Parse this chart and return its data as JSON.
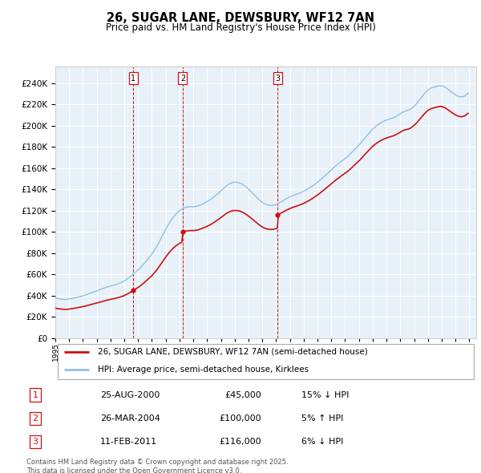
{
  "title": "26, SUGAR LANE, DEWSBURY, WF12 7AN",
  "subtitle": "Price paid vs. HM Land Registry's House Price Index (HPI)",
  "plot_bg_color": "#e8f0f8",
  "ylabel_values": [
    0,
    20000,
    40000,
    60000,
    80000,
    100000,
    120000,
    140000,
    160000,
    180000,
    200000,
    220000,
    240000
  ],
  "ylim": [
    0,
    256000
  ],
  "xlim_start": 1995.0,
  "xlim_end": 2025.5,
  "hpi_color": "#92c0e0",
  "price_color": "#cc1111",
  "legend_line1": "26, SUGAR LANE, DEWSBURY, WF12 7AN (semi-detached house)",
  "legend_line2": "HPI: Average price, semi-detached house, Kirklees",
  "transactions": [
    {
      "num": 1,
      "date": "25-AUG-2000",
      "year": 2000.65,
      "price": 45000,
      "pct": "15%",
      "dir": "↓",
      "hpi_index": 65200
    },
    {
      "num": 2,
      "date": "26-MAR-2004",
      "year": 2004.23,
      "price": 100000,
      "pct": "5%",
      "dir": "↑",
      "hpi_index": 126700
    },
    {
      "num": 3,
      "date": "11-FEB-2011",
      "year": 2011.12,
      "price": 116000,
      "pct": "6%",
      "dir": "↓",
      "hpi_index": 128600
    }
  ],
  "footer": "Contains HM Land Registry data © Crown copyright and database right 2025.\nThis data is licensed under the Open Government Licence v3.0.",
  "hpi_monthly": [
    38000,
    37700,
    37500,
    37200,
    37000,
    36800,
    36700,
    36600,
    36500,
    36400,
    36500,
    36700,
    36900,
    37100,
    37300,
    37500,
    37700,
    37900,
    38200,
    38500,
    38800,
    39100,
    39300,
    39600,
    39900,
    40200,
    40600,
    41000,
    41400,
    41800,
    42200,
    42600,
    43000,
    43400,
    43800,
    44200,
    44600,
    45000,
    45400,
    45800,
    46200,
    46600,
    47000,
    47400,
    47800,
    48200,
    48500,
    48800,
    49100,
    49400,
    49700,
    50000,
    50300,
    50700,
    51100,
    51500,
    51900,
    52400,
    52900,
    53400,
    53900,
    54600,
    55400,
    56200,
    57000,
    57800,
    58700,
    59600,
    60500,
    61400,
    62400,
    63400,
    64300,
    65200,
    66300,
    67500,
    68700,
    69900,
    71200,
    72500,
    73800,
    75100,
    76400,
    77800,
    79200,
    80800,
    82500,
    84200,
    86000,
    88000,
    90000,
    92100,
    94200,
    96300,
    98400,
    100500,
    102600,
    104600,
    106500,
    108300,
    110000,
    111600,
    113100,
    114500,
    115800,
    117000,
    118100,
    119100,
    120000,
    120800,
    121500,
    122100,
    122600,
    123000,
    123300,
    123500,
    123600,
    123700,
    123700,
    123700,
    123700,
    123800,
    124000,
    124200,
    124500,
    124900,
    125300,
    125800,
    126300,
    126800,
    127400,
    128000,
    128600,
    129200,
    129900,
    130600,
    131300,
    132100,
    133000,
    133900,
    134800,
    135700,
    136700,
    137700,
    138700,
    139700,
    140700,
    141700,
    142600,
    143500,
    144300,
    145000,
    145600,
    146100,
    146500,
    146700,
    146800,
    146800,
    146700,
    146500,
    146200,
    145800,
    145300,
    144700,
    144000,
    143200,
    142300,
    141400,
    140400,
    139300,
    138200,
    137100,
    136000,
    134900,
    133800,
    132700,
    131600,
    130600,
    129600,
    128700,
    127900,
    127100,
    126500,
    126000,
    125600,
    125300,
    125100,
    125000,
    125000,
    125100,
    125300,
    125600,
    126000,
    126400,
    126900,
    127500,
    128100,
    128700,
    129400,
    130000,
    130700,
    131300,
    131900,
    132500,
    133000,
    133500,
    134000,
    134400,
    134800,
    135200,
    135600,
    136000,
    136400,
    136800,
    137300,
    137800,
    138300,
    138900,
    139500,
    140100,
    140700,
    141400,
    142100,
    142800,
    143600,
    144400,
    145200,
    146000,
    146800,
    147700,
    148600,
    149500,
    150400,
    151400,
    152400,
    153400,
    154400,
    155400,
    156400,
    157400,
    158400,
    159400,
    160400,
    161400,
    162300,
    163200,
    164100,
    165000,
    165800,
    166700,
    167500,
    168300,
    169100,
    170000,
    170900,
    171900,
    172900,
    174000,
    175100,
    176200,
    177300,
    178400,
    179500,
    180600,
    181700,
    182900,
    184200,
    185500,
    186800,
    188100,
    189400,
    190700,
    192000,
    193300,
    194500,
    195700,
    196800,
    197800,
    198800,
    199700,
    200500,
    201300,
    202000,
    202700,
    203300,
    203900,
    204400,
    204900,
    205300,
    205700,
    206100,
    206500,
    206800,
    207200,
    207600,
    208100,
    208600,
    209200,
    209900,
    210600,
    211400,
    212100,
    212700,
    213200,
    213600,
    213900,
    214200,
    214500,
    215000,
    215600,
    216400,
    217300,
    218300,
    219400,
    220600,
    221900,
    223300,
    224700,
    226100,
    227500,
    228900,
    230200,
    231500,
    232600,
    233600,
    234400,
    235000,
    235500,
    235900,
    236200,
    236500,
    236800,
    237100,
    237400,
    237600,
    237800,
    237600,
    237300,
    236800,
    236200,
    235500,
    234700,
    233900,
    233000,
    232100,
    231300,
    230500,
    229700,
    229000,
    228400,
    227900,
    227500,
    227300,
    227200,
    227300,
    227600,
    228100,
    228800,
    229700,
    230700
  ],
  "hpi_years_start": 1995.0,
  "hpi_month_step": 0.08333
}
